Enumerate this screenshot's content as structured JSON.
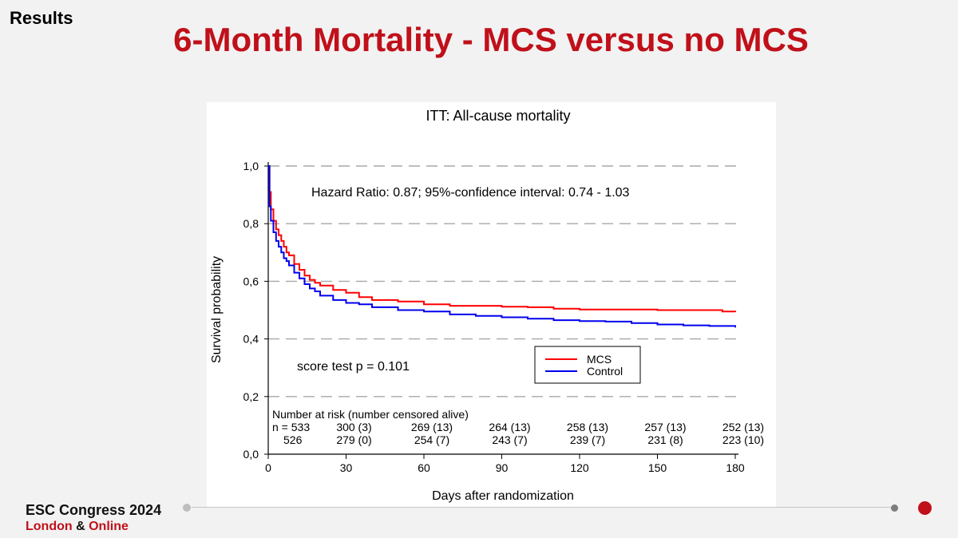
{
  "slide": {
    "section_label": "Results",
    "title": "6-Month Mortality - MCS versus no MCS"
  },
  "footer": {
    "brand_line1": "ESC Congress 2024",
    "brand_line2_part1": "London",
    "brand_line2_amp": "&",
    "brand_line2_part2": "Online"
  },
  "colors": {
    "accent": "#c0101a",
    "mcs": "#ff0000",
    "control": "#0000ee"
  },
  "chart_data": {
    "type": "line",
    "title": "ITT: All-cause mortality",
    "xlabel": "Days after randomization",
    "ylabel": "Survival probability",
    "xlim": [
      0,
      180
    ],
    "ylim": [
      0,
      1
    ],
    "x_ticks": [
      "0",
      "30",
      "60",
      "90",
      "120",
      "150",
      "180"
    ],
    "y_ticks": [
      "0,0",
      "0,2",
      "0,4",
      "0,6",
      "0,8",
      "1,0"
    ],
    "grid": "horizontal dashed",
    "annotations": {
      "hazard_ratio": "Hazard Ratio: 0.87; 95%-confidence interval: 0.74 - 1.03",
      "score_test": "score test p = 0.101"
    },
    "legend_position": "center-right",
    "series": [
      {
        "name": "MCS",
        "color": "#ff0000",
        "x": [
          0,
          0.5,
          1,
          2,
          3,
          4,
          5,
          6,
          7,
          8,
          10,
          12,
          14,
          16,
          18,
          20,
          25,
          30,
          35,
          40,
          50,
          60,
          70,
          80,
          90,
          100,
          110,
          120,
          130,
          140,
          150,
          160,
          170,
          175,
          180
        ],
        "y": [
          1.0,
          0.91,
          0.85,
          0.81,
          0.78,
          0.76,
          0.74,
          0.72,
          0.7,
          0.69,
          0.66,
          0.64,
          0.62,
          0.605,
          0.595,
          0.585,
          0.57,
          0.56,
          0.545,
          0.535,
          0.53,
          0.52,
          0.515,
          0.515,
          0.512,
          0.51,
          0.505,
          0.502,
          0.502,
          0.502,
          0.5,
          0.5,
          0.5,
          0.495,
          0.493
        ]
      },
      {
        "name": "Control",
        "color": "#0000ee",
        "x": [
          0,
          0.5,
          1,
          2,
          3,
          4,
          5,
          6,
          7,
          8,
          10,
          12,
          14,
          16,
          18,
          20,
          25,
          30,
          35,
          40,
          50,
          60,
          70,
          80,
          90,
          100,
          110,
          120,
          130,
          140,
          150,
          160,
          170,
          175,
          180
        ],
        "y": [
          1.0,
          0.86,
          0.81,
          0.77,
          0.74,
          0.72,
          0.7,
          0.68,
          0.67,
          0.655,
          0.63,
          0.61,
          0.59,
          0.575,
          0.565,
          0.55,
          0.535,
          0.525,
          0.52,
          0.51,
          0.5,
          0.495,
          0.485,
          0.48,
          0.475,
          0.47,
          0.465,
          0.462,
          0.46,
          0.455,
          0.45,
          0.447,
          0.445,
          0.445,
          0.44
        ]
      }
    ],
    "risk_table": {
      "header": "Number at risk (number censored alive)",
      "rows": [
        {
          "prefix": "n = 533",
          "values": [
            "300 (3)",
            "269 (13)",
            "264 (13)",
            "258 (13)",
            "257 (13)",
            "252 (13)"
          ]
        },
        {
          "prefix": "526",
          "values": [
            "279 (0)",
            "254 (7)",
            "243 (7)",
            "239 (7)",
            "231 (8)",
            "223 (10)"
          ]
        }
      ]
    }
  }
}
